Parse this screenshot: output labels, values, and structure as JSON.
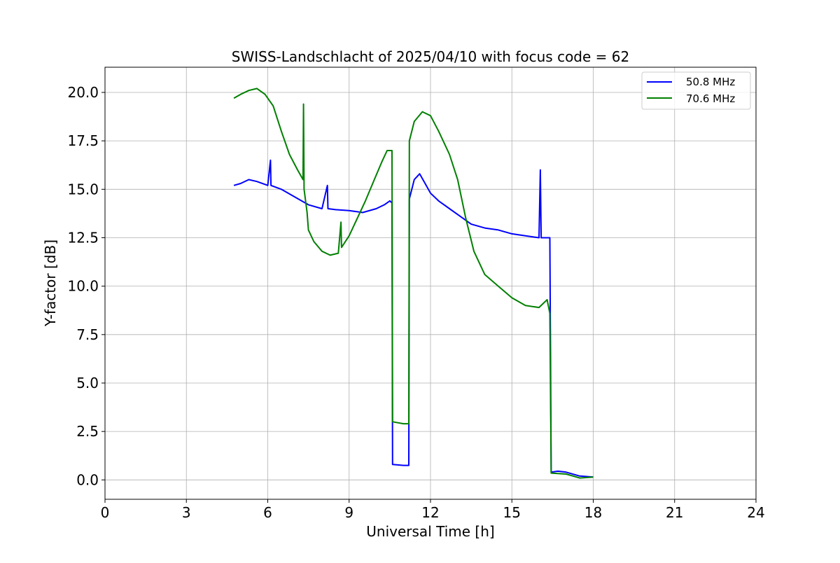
{
  "chart_data": {
    "type": "line",
    "title": "SWISS-Landschlacht of 2025/04/10 with focus code = 62",
    "xlabel": "Universal Time [h]",
    "ylabel": "Y-factor [dB]",
    "xlim": [
      0,
      24
    ],
    "ylim": [
      -1.0,
      21.3
    ],
    "xticks": [
      0,
      3,
      6,
      9,
      12,
      15,
      18,
      21,
      24
    ],
    "xtick_labels": [
      "0",
      "3",
      "6",
      "9",
      "12",
      "15",
      "18",
      "21",
      "24"
    ],
    "yticks": [
      0,
      2.5,
      5,
      7.5,
      10,
      12.5,
      15,
      17.5,
      20
    ],
    "ytick_labels": [
      "0.0",
      "2.5",
      "5.0",
      "7.5",
      "10.0",
      "12.5",
      "15.0",
      "17.5",
      "20.0"
    ],
    "grid": true,
    "legend_position": "top-right",
    "series": [
      {
        "name": "50.8 MHz",
        "color": "#0000ff",
        "points": [
          [
            4.75,
            15.2
          ],
          [
            5.0,
            15.3
          ],
          [
            5.3,
            15.5
          ],
          [
            5.6,
            15.4
          ],
          [
            6.0,
            15.2
          ],
          [
            6.1,
            16.5
          ],
          [
            6.12,
            15.2
          ],
          [
            6.5,
            15.0
          ],
          [
            7.0,
            14.6
          ],
          [
            7.5,
            14.2
          ],
          [
            8.0,
            14.0
          ],
          [
            8.2,
            15.2
          ],
          [
            8.22,
            14.0
          ],
          [
            8.5,
            13.95
          ],
          [
            9.0,
            13.9
          ],
          [
            9.5,
            13.8
          ],
          [
            10.0,
            14.0
          ],
          [
            10.3,
            14.2
          ],
          [
            10.5,
            14.4
          ],
          [
            10.58,
            14.3
          ],
          [
            10.6,
            0.8
          ],
          [
            11.0,
            0.75
          ],
          [
            11.2,
            0.75
          ],
          [
            11.22,
            14.5
          ],
          [
            11.4,
            15.5
          ],
          [
            11.6,
            15.8
          ],
          [
            11.8,
            15.3
          ],
          [
            12.0,
            14.8
          ],
          [
            12.3,
            14.4
          ],
          [
            12.7,
            14.0
          ],
          [
            13.0,
            13.7
          ],
          [
            13.5,
            13.2
          ],
          [
            14.0,
            13.0
          ],
          [
            14.5,
            12.9
          ],
          [
            15.0,
            12.7
          ],
          [
            15.5,
            12.6
          ],
          [
            16.0,
            12.5
          ],
          [
            16.05,
            16.0
          ],
          [
            16.08,
            12.5
          ],
          [
            16.4,
            12.5
          ],
          [
            16.45,
            0.4
          ],
          [
            16.7,
            0.45
          ],
          [
            17.0,
            0.4
          ],
          [
            17.5,
            0.2
          ],
          [
            18.0,
            0.15
          ]
        ]
      },
      {
        "name": "70.6 MHz",
        "color": "#008000",
        "points": [
          [
            4.75,
            19.7
          ],
          [
            5.0,
            19.9
          ],
          [
            5.3,
            20.1
          ],
          [
            5.6,
            20.2
          ],
          [
            5.9,
            19.9
          ],
          [
            6.2,
            19.3
          ],
          [
            6.5,
            18.0
          ],
          [
            6.8,
            16.8
          ],
          [
            7.1,
            16.0
          ],
          [
            7.3,
            15.5
          ],
          [
            7.32,
            19.4
          ],
          [
            7.34,
            15.0
          ],
          [
            7.45,
            13.8
          ],
          [
            7.5,
            12.9
          ],
          [
            7.7,
            12.3
          ],
          [
            8.0,
            11.8
          ],
          [
            8.3,
            11.6
          ],
          [
            8.6,
            11.7
          ],
          [
            8.7,
            13.3
          ],
          [
            8.72,
            12.0
          ],
          [
            9.0,
            12.6
          ],
          [
            9.3,
            13.5
          ],
          [
            9.6,
            14.4
          ],
          [
            9.9,
            15.4
          ],
          [
            10.2,
            16.4
          ],
          [
            10.4,
            17.0
          ],
          [
            10.58,
            17.0
          ],
          [
            10.6,
            3.0
          ],
          [
            11.0,
            2.9
          ],
          [
            11.2,
            2.9
          ],
          [
            11.22,
            17.5
          ],
          [
            11.4,
            18.5
          ],
          [
            11.7,
            19.0
          ],
          [
            12.0,
            18.8
          ],
          [
            12.3,
            18.0
          ],
          [
            12.7,
            16.8
          ],
          [
            13.0,
            15.5
          ],
          [
            13.3,
            13.5
          ],
          [
            13.6,
            11.8
          ],
          [
            14.0,
            10.6
          ],
          [
            14.5,
            10.0
          ],
          [
            15.0,
            9.4
          ],
          [
            15.5,
            9.0
          ],
          [
            16.0,
            8.9
          ],
          [
            16.3,
            9.3
          ],
          [
            16.4,
            8.6
          ],
          [
            16.45,
            0.35
          ],
          [
            17.0,
            0.3
          ],
          [
            17.5,
            0.1
          ],
          [
            18.0,
            0.15
          ]
        ]
      }
    ]
  }
}
